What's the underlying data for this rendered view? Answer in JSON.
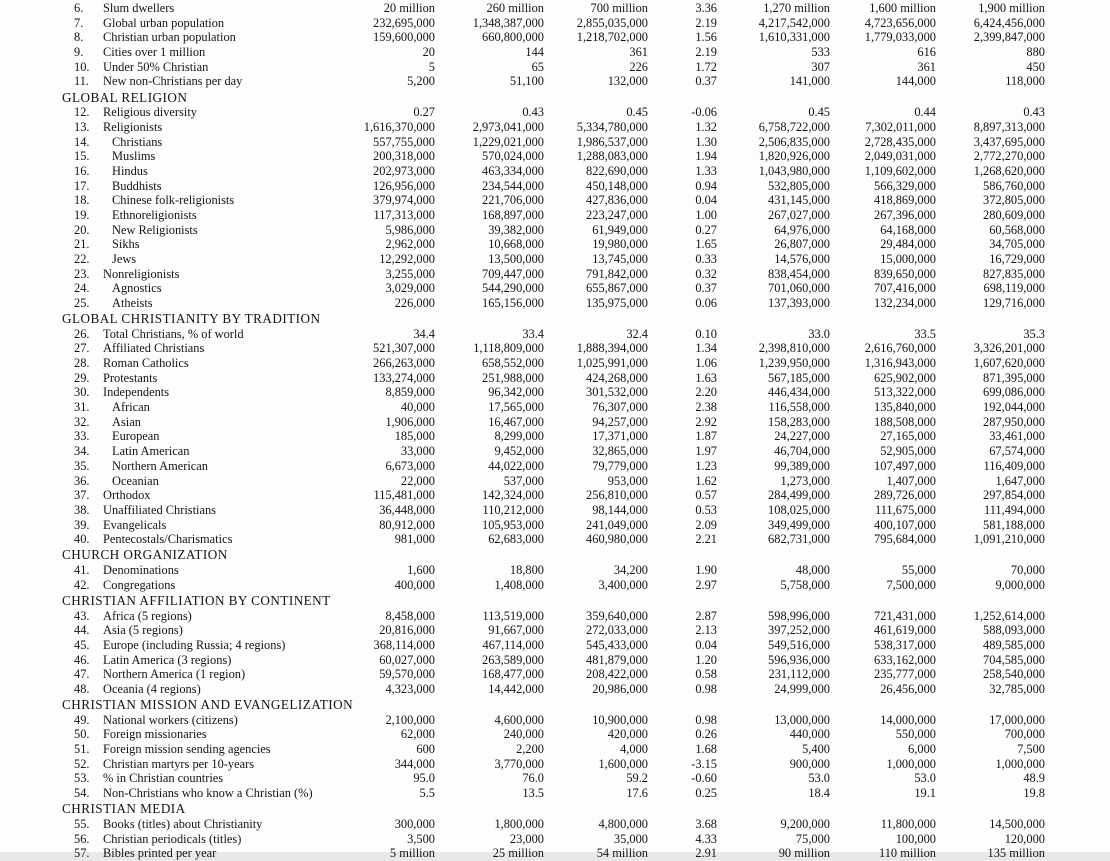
{
  "page": {
    "background": "#fdfdfc",
    "text_color": "#141414"
  },
  "table": {
    "sections": [
      {
        "header": null,
        "rows": [
          {
            "num": "6.",
            "label": "Slum dwellers",
            "indent": 0,
            "values": [
              "20 million",
              "260 million",
              "700 million",
              "3.36",
              "1,270 million",
              "1,600 million",
              "1,900 million"
            ]
          },
          {
            "num": "7.",
            "label": "Global urban population",
            "indent": 0,
            "values": [
              "232,695,000",
              "1,348,387,000",
              "2,855,035,000",
              "2.19",
              "4,217,542,000",
              "4,723,656,000",
              "6,424,456,000"
            ]
          },
          {
            "num": "8.",
            "label": "Christian urban population",
            "indent": 0,
            "values": [
              "159,600,000",
              "660,800,000",
              "1,218,702,000",
              "1.56",
              "1,610,331,000",
              "1,779,033,000",
              "2,399,847,000"
            ]
          },
          {
            "num": "9.",
            "label": "Cities over 1 million",
            "indent": 0,
            "values": [
              "20",
              "144",
              "361",
              "2.19",
              "533",
              "616",
              "880"
            ]
          },
          {
            "num": "10.",
            "label": "Under 50% Christian",
            "indent": 0,
            "values": [
              "5",
              "65",
              "226",
              "1.72",
              "307",
              "361",
              "450"
            ]
          },
          {
            "num": "11.",
            "label": "New non-Christians per day",
            "indent": 0,
            "values": [
              "5,200",
              "51,100",
              "132,000",
              "0.37",
              "141,000",
              "144,000",
              "118,000"
            ]
          }
        ]
      },
      {
        "header": "GLOBAL RELIGION",
        "rows": [
          {
            "num": "12.",
            "label": "Religious diversity",
            "indent": 0,
            "values": [
              "0.27",
              "0.43",
              "0.45",
              "-0.06",
              "0.45",
              "0.44",
              "0.43"
            ]
          },
          {
            "num": "13.",
            "label": "Religionists",
            "indent": 0,
            "values": [
              "1,616,370,000",
              "2,973,041,000",
              "5,334,780,000",
              "1.32",
              "6,758,722,000",
              "7,302,011,000",
              "8,897,313,000"
            ]
          },
          {
            "num": "14.",
            "label": "Christians",
            "indent": 1,
            "values": [
              "557,755,000",
              "1,229,021,000",
              "1,986,537,000",
              "1.30",
              "2,506,835,000",
              "2,728,435,000",
              "3,437,695,000"
            ]
          },
          {
            "num": "15.",
            "label": "Muslims",
            "indent": 1,
            "values": [
              "200,318,000",
              "570,024,000",
              "1,288,083,000",
              "1.94",
              "1,820,926,000",
              "2,049,031,000",
              "2,772,270,000"
            ]
          },
          {
            "num": "16.",
            "label": "Hindus",
            "indent": 1,
            "values": [
              "202,973,000",
              "463,334,000",
              "822,690,000",
              "1.33",
              "1,043,980,000",
              "1,109,602,000",
              "1,268,620,000"
            ]
          },
          {
            "num": "17.",
            "label": "Buddhists",
            "indent": 1,
            "values": [
              "126,956,000",
              "234,544,000",
              "450,148,000",
              "0.94",
              "532,805,000",
              "566,329,000",
              "586,760,000"
            ]
          },
          {
            "num": "18.",
            "label": "Chinese folk-religionists",
            "indent": 1,
            "values": [
              "379,974,000",
              "221,706,000",
              "427,836,000",
              "0.04",
              "431,145,000",
              "418,869,000",
              "372,805,000"
            ]
          },
          {
            "num": "19.",
            "label": "Ethnoreligionists",
            "indent": 1,
            "values": [
              "117,313,000",
              "168,897,000",
              "223,247,000",
              "1.00",
              "267,027,000",
              "267,396,000",
              "280,609,000"
            ]
          },
          {
            "num": "20.",
            "label": "New Religionists",
            "indent": 1,
            "values": [
              "5,986,000",
              "39,382,000",
              "61,949,000",
              "0.27",
              "64,976,000",
              "64,168,000",
              "60,568,000"
            ]
          },
          {
            "num": "21.",
            "label": "Sikhs",
            "indent": 1,
            "values": [
              "2,962,000",
              "10,668,000",
              "19,980,000",
              "1.65",
              "26,807,000",
              "29,484,000",
              "34,705,000"
            ]
          },
          {
            "num": "22.",
            "label": "Jews",
            "indent": 1,
            "values": [
              "12,292,000",
              "13,500,000",
              "13,745,000",
              "0.33",
              "14,576,000",
              "15,000,000",
              "16,729,000"
            ]
          },
          {
            "num": "23.",
            "label": "Nonreligionists",
            "indent": 0,
            "values": [
              "3,255,000",
              "709,447,000",
              "791,842,000",
              "0.32",
              "838,454,000",
              "839,650,000",
              "827,835,000"
            ]
          },
          {
            "num": "24.",
            "label": "Agnostics",
            "indent": 1,
            "values": [
              "3,029,000",
              "544,290,000",
              "655,867,000",
              "0.37",
              "701,060,000",
              "707,416,000",
              "698,119,000"
            ]
          },
          {
            "num": "25.",
            "label": "Atheists",
            "indent": 1,
            "values": [
              "226,000",
              "165,156,000",
              "135,975,000",
              "0.06",
              "137,393,000",
              "132,234,000",
              "129,716,000"
            ]
          }
        ]
      },
      {
        "header": "GLOBAL CHRISTIANITY BY TRADITION",
        "rows": [
          {
            "num": "26.",
            "label": "Total Christians, % of world",
            "indent": 0,
            "values": [
              "34.4",
              "33.4",
              "32.4",
              "0.10",
              "33.0",
              "33.5",
              "35.3"
            ]
          },
          {
            "num": "27.",
            "label": "Affiliated Christians",
            "indent": 0,
            "values": [
              "521,307,000",
              "1,118,809,000",
              "1,888,394,000",
              "1.34",
              "2,398,810,000",
              "2,616,760,000",
              "3,326,201,000"
            ]
          },
          {
            "num": "28.",
            "label": "Roman Catholics",
            "indent": 0,
            "values": [
              "266,263,000",
              "658,552,000",
              "1,025,991,000",
              "1.06",
              "1,239,950,000",
              "1,316,943,000",
              "1,607,620,000"
            ]
          },
          {
            "num": "29.",
            "label": "Protestants",
            "indent": 0,
            "values": [
              "133,274,000",
              "251,988,000",
              "424,268,000",
              "1.63",
              "567,185,000",
              "625,902,000",
              "871,395,000"
            ]
          },
          {
            "num": "30.",
            "label": "Independents",
            "indent": 0,
            "values": [
              "8,859,000",
              "96,342,000",
              "301,532,000",
              "2.20",
              "446,434,000",
              "513,322,000",
              "699,086,000"
            ]
          },
          {
            "num": "31.",
            "label": "African",
            "indent": 1,
            "values": [
              "40,000",
              "17,565,000",
              "76,307,000",
              "2.38",
              "116,558,000",
              "135,840,000",
              "192,044,000"
            ]
          },
          {
            "num": "32.",
            "label": "Asian",
            "indent": 1,
            "values": [
              "1,906,000",
              "16,467,000",
              "94,257,000",
              "2.92",
              "158,283,000",
              "188,508,000",
              "287,950,000"
            ]
          },
          {
            "num": "33.",
            "label": "European",
            "indent": 1,
            "values": [
              "185,000",
              "8,299,000",
              "17,371,000",
              "1.87",
              "24,227,000",
              "27,165,000",
              "33,461,000"
            ]
          },
          {
            "num": "34.",
            "label": "Latin American",
            "indent": 1,
            "values": [
              "33,000",
              "9,452,000",
              "32,865,000",
              "1.97",
              "46,704,000",
              "52,905,000",
              "67,574,000"
            ]
          },
          {
            "num": "35.",
            "label": "Northern American",
            "indent": 1,
            "values": [
              "6,673,000",
              "44,022,000",
              "79,779,000",
              "1.23",
              "99,389,000",
              "107,497,000",
              "116,409,000"
            ]
          },
          {
            "num": "36.",
            "label": "Oceanian",
            "indent": 1,
            "values": [
              "22,000",
              "537,000",
              "953,000",
              "1.62",
              "1,273,000",
              "1,407,000",
              "1,647,000"
            ]
          },
          {
            "num": "37.",
            "label": "Orthodox",
            "indent": 0,
            "values": [
              "115,481,000",
              "142,324,000",
              "256,810,000",
              "0.57",
              "284,499,000",
              "289,726,000",
              "297,854,000"
            ]
          },
          {
            "num": "38.",
            "label": "Unaffiliated Christians",
            "indent": 0,
            "values": [
              "36,448,000",
              "110,212,000",
              "98,144,000",
              "0.53",
              "108,025,000",
              "111,675,000",
              "111,494,000"
            ]
          },
          {
            "num": "39.",
            "label": "Evangelicals",
            "indent": 0,
            "values": [
              "80,912,000",
              "105,953,000",
              "241,049,000",
              "2.09",
              "349,499,000",
              "400,107,000",
              "581,188,000"
            ]
          },
          {
            "num": "40.",
            "label": "Pentecostals/Charismatics",
            "indent": 0,
            "values": [
              "981,000",
              "62,683,000",
              "460,980,000",
              "2.21",
              "682,731,000",
              "795,684,000",
              "1,091,210,000"
            ]
          }
        ]
      },
      {
        "header": "CHURCH ORGANIZATION",
        "rows": [
          {
            "num": "41.",
            "label": "Denominations",
            "indent": 0,
            "values": [
              "1,600",
              "18,800",
              "34,200",
              "1.90",
              "48,000",
              "55,000",
              "70,000"
            ]
          },
          {
            "num": "42.",
            "label": "Congregations",
            "indent": 0,
            "values": [
              "400,000",
              "1,408,000",
              "3,400,000",
              "2.97",
              "5,758,000",
              "7,500,000",
              "9,000,000"
            ]
          }
        ]
      },
      {
        "header": "CHRISTIAN AFFILIATION BY CONTINENT",
        "rows": [
          {
            "num": "43.",
            "label": "Africa (5 regions)",
            "indent": 0,
            "values": [
              "8,458,000",
              "113,519,000",
              "359,640,000",
              "2.87",
              "598,996,000",
              "721,431,000",
              "1,252,614,000"
            ]
          },
          {
            "num": "44.",
            "label": "Asia (5 regions)",
            "indent": 0,
            "values": [
              "20,816,000",
              "91,667,000",
              "272,033,000",
              "2.13",
              "397,252,000",
              "461,619,000",
              "588,093,000"
            ]
          },
          {
            "num": "45.",
            "label": "Europe (including Russia; 4 regions)",
            "indent": 0,
            "values": [
              "368,114,000",
              "467,114,000",
              "545,433,000",
              "0.04",
              "549,516,000",
              "538,317,000",
              "489,585,000"
            ]
          },
          {
            "num": "46.",
            "label": "Latin America (3 regions)",
            "indent": 0,
            "values": [
              "60,027,000",
              "263,589,000",
              "481,879,000",
              "1.20",
              "596,936,000",
              "633,162,000",
              "704,585,000"
            ]
          },
          {
            "num": "47.",
            "label": "Northern America (1 region)",
            "indent": 0,
            "values": [
              "59,570,000",
              "168,477,000",
              "208,422,000",
              "0.58",
              "231,112,000",
              "235,777,000",
              "258,540,000"
            ]
          },
          {
            "num": "48.",
            "label": "Oceania (4 regions)",
            "indent": 0,
            "values": [
              "4,323,000",
              "14,442,000",
              "20,986,000",
              "0.98",
              "24,999,000",
              "26,456,000",
              "32,785,000"
            ]
          }
        ]
      },
      {
        "header": "CHRISTIAN MISSION AND EVANGELIZATION",
        "rows": [
          {
            "num": "49.",
            "label": "National workers (citizens)",
            "indent": 0,
            "values": [
              "2,100,000",
              "4,600,000",
              "10,900,000",
              "0.98",
              "13,000,000",
              "14,000,000",
              "17,000,000"
            ]
          },
          {
            "num": "50.",
            "label": "Foreign missionaries",
            "indent": 0,
            "values": [
              "62,000",
              "240,000",
              "420,000",
              "0.26",
              "440,000",
              "550,000",
              "700,000"
            ]
          },
          {
            "num": "51.",
            "label": "Foreign mission sending agencies",
            "indent": 0,
            "values": [
              "600",
              "2,200",
              "4,000",
              "1.68",
              "5,400",
              "6,000",
              "7,500"
            ]
          },
          {
            "num": "52.",
            "label": "Christian martyrs per 10-years",
            "indent": 0,
            "values": [
              "344,000",
              "3,770,000",
              "1,600,000",
              "-3.15",
              "900,000",
              "1,000,000",
              "1,000,000"
            ]
          },
          {
            "num": "53.",
            "label": "% in Christian countries",
            "indent": 0,
            "values": [
              "95.0",
              "76.0",
              "59.2",
              "-0.60",
              "53.0",
              "53.0",
              "48.9"
            ]
          },
          {
            "num": "54.",
            "label": "Non-Christians who know a Christian (%)",
            "indent": 0,
            "values": [
              "5.5",
              "13.5",
              "17.6",
              "0.25",
              "18.4",
              "19.1",
              "19.8"
            ]
          }
        ]
      },
      {
        "header": "CHRISTIAN MEDIA",
        "rows": [
          {
            "num": "55.",
            "label": "Books (titles) about Christianity",
            "indent": 0,
            "values": [
              "300,000",
              "1,800,000",
              "4,800,000",
              "3.68",
              "9,200,000",
              "11,800,000",
              "14,500,000"
            ]
          },
          {
            "num": "56.",
            "label": "Christian periodicals (titles)",
            "indent": 0,
            "values": [
              "3,500",
              "23,000",
              "35,000",
              "4.33",
              "75,000",
              "100,000",
              "120,000"
            ]
          },
          {
            "num": "57.",
            "label": "Bibles printed per year",
            "indent": 0,
            "values": [
              "5 million",
              "25 million",
              "54 million",
              "2.91",
              "90 million",
              "110 million",
              "135 million"
            ]
          }
        ]
      }
    ]
  }
}
